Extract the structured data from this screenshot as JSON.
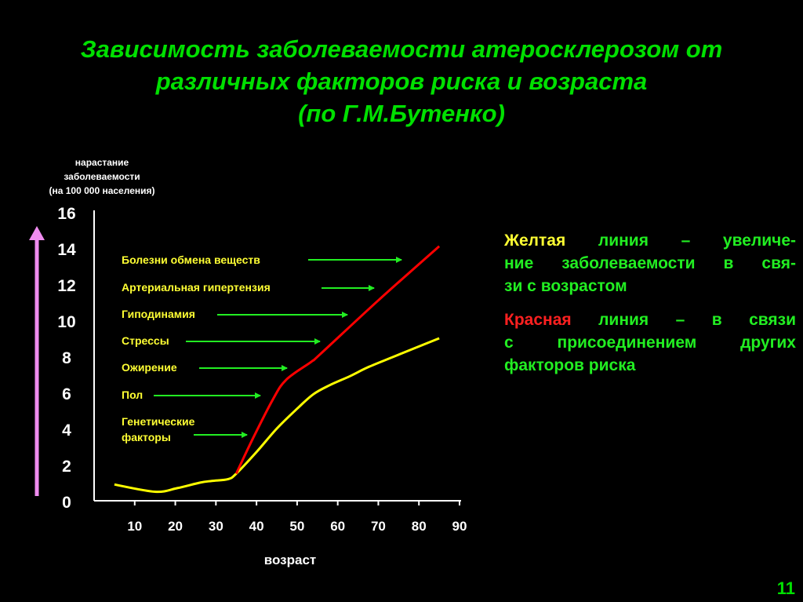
{
  "title_lines": [
    "Зависимость заболеваемости атеросклерозом от",
    "различных факторов риска и возраста",
    "(по Г.М.Бутенко)"
  ],
  "chart_data": {
    "type": "line",
    "ylabel_lines": [
      "нарастание",
      "заболеваемости",
      "(на 100 000 населения)"
    ],
    "xlabel": "возраст",
    "xlim": [
      0,
      90
    ],
    "ylim": [
      0,
      16
    ],
    "xticks": [
      10,
      20,
      30,
      40,
      50,
      60,
      70,
      80,
      90
    ],
    "yticks": [
      0,
      2,
      4,
      6,
      8,
      10,
      12,
      14,
      16
    ],
    "grid": false,
    "series": [
      {
        "color": "#ffff00",
        "x": [
          5,
          15,
          20.5,
          26,
          29,
          33,
          35,
          40,
          45,
          50,
          54,
          58,
          63,
          67.5,
          74,
          85
        ],
        "y": [
          0.9,
          0.5,
          0.7,
          1.0,
          1.1,
          1.2,
          1.5,
          2.7,
          4.0,
          5.1,
          5.9,
          6.4,
          6.9,
          7.4,
          8.0,
          9.0
        ]
      },
      {
        "color": "#ff0000",
        "x": [
          35,
          39,
          44,
          47.3,
          53.5,
          55.6,
          70,
          85
        ],
        "y": [
          1.5,
          3.4,
          5.6,
          6.7,
          7.7,
          8.1,
          11.1,
          14.1
        ]
      }
    ],
    "annotations": [
      "Болезни обмена веществ",
      "Артериальная гипертензия",
      "Гиподинамия",
      "Стрессы",
      "Ожирение",
      "Пол",
      "Генетические факторы"
    ],
    "colors": {
      "axis": "#ffffff",
      "arrows": "#22ee22",
      "annotation_text": "#ffff33",
      "y_arrow": "#f08cf0"
    }
  },
  "notes": {
    "yellow": {
      "highlight": "Желтая",
      "lines": [
        " линия – увеличе-",
        "ние заболеваемости в свя-",
        "зи с возрастом"
      ]
    },
    "red": {
      "highlight": "Красная",
      "lines": [
        " линия – в связи",
        "с присоединением других",
        "факторов риска"
      ]
    }
  },
  "page_number": "11"
}
